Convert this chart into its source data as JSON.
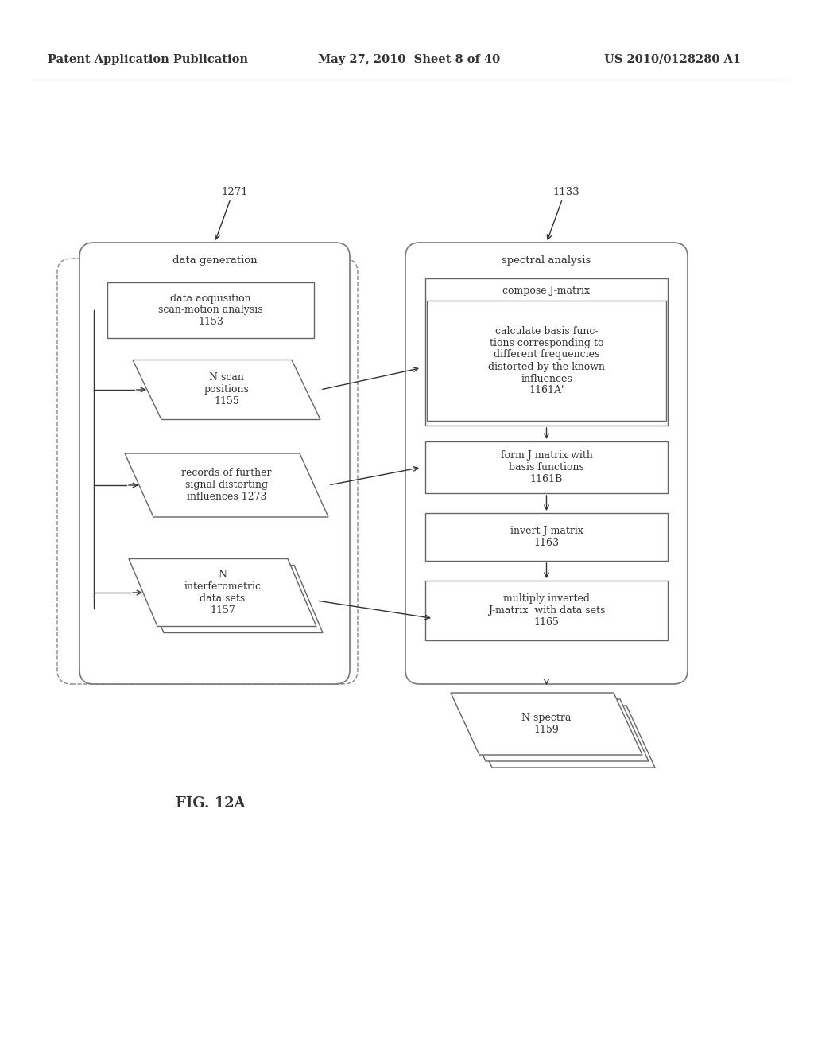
{
  "header_left": "Patent Application Publication",
  "header_center": "May 27, 2010  Sheet 8 of 40",
  "header_right": "US 2010/0128280 A1",
  "fig_label": "FIG. 12A",
  "label_1271": "1271",
  "label_1133": "1133",
  "box_data_gen_title": "data generation",
  "box_spectral_title": "spectral analysis",
  "box_1153_text": "data acquisition\nscan-motion analysis\n1153",
  "box_1155_text": "N scan\npositions\n1155",
  "box_1273_text": "records of further\nsignal distorting\ninfluences 1273",
  "box_1157_text": "N\ninterferometric\ndata sets\n1157",
  "box_1161a_top": "compose J-matrix",
  "box_1161a_text": "calculate basis func-\ntions corresponding to\ndifferent frequencies\ndistorted by the known\ninfluences\n1161A'",
  "box_1161b_text": "form J matrix with\nbasis functions\n1161B",
  "box_1163_text": "invert J-matrix\n1163",
  "box_1165_text": "multiply inverted\nJ-matrix  with data sets\n1165",
  "box_1159_text": "N spectra\n1159",
  "bg_color": "#ffffff",
  "text_color": "#333333",
  "box_line_color": "#666666",
  "container_line_color": "#777777"
}
